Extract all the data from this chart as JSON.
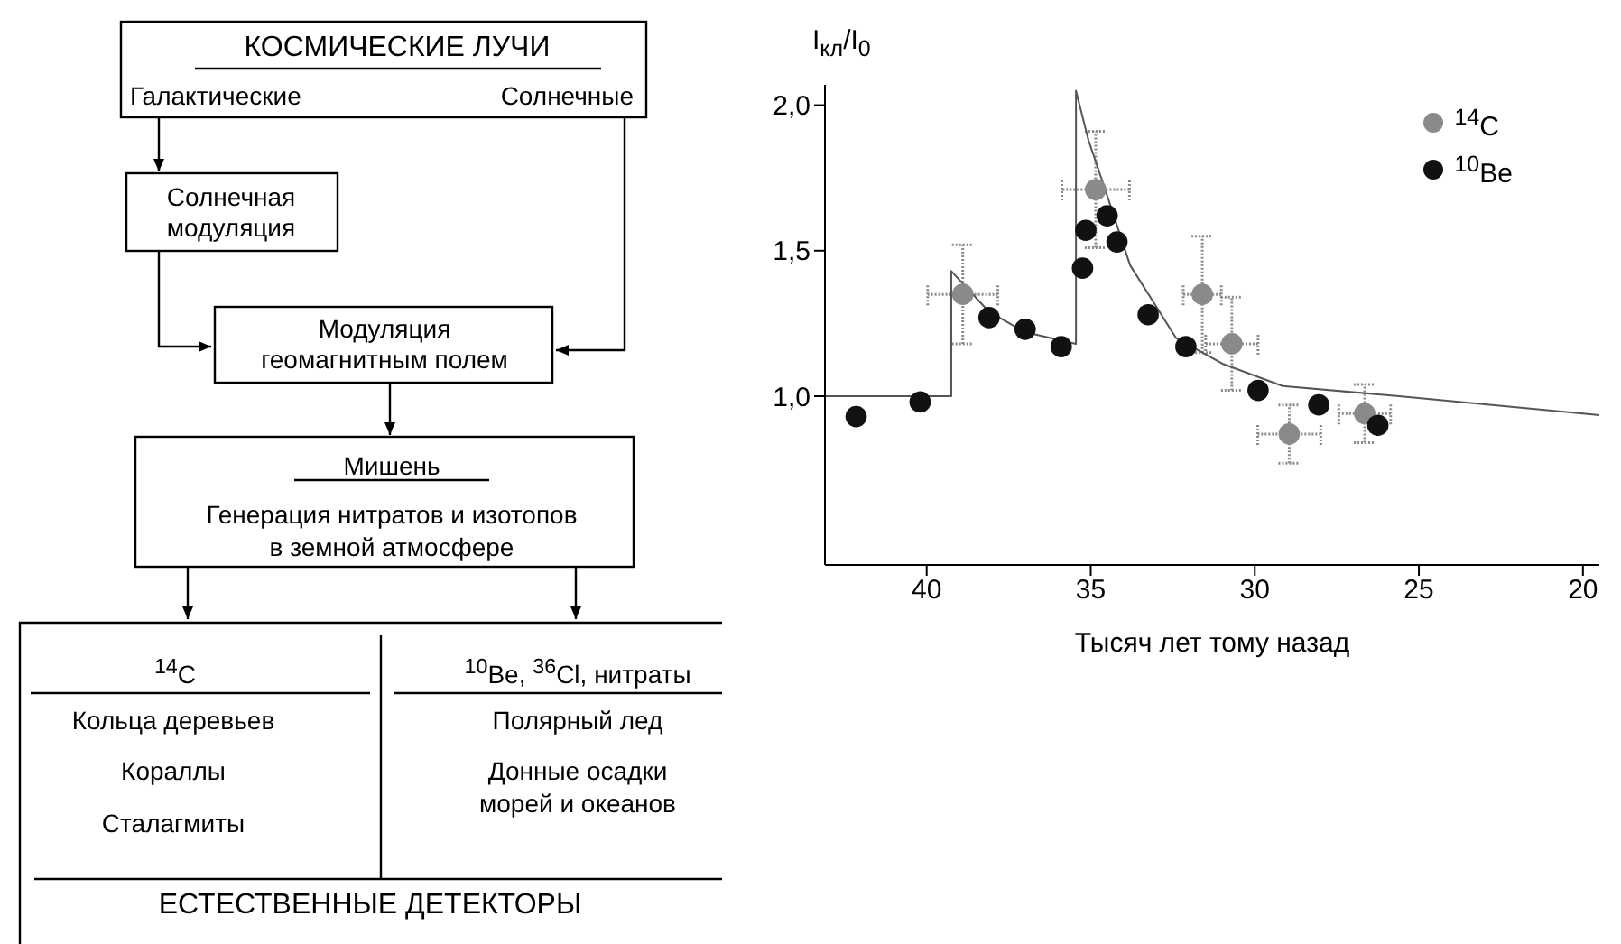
{
  "chart_data": [
    {
      "type": "other",
      "annotations": [
        "КОСМИЧЕСКИЕ ЛУЧИ",
        "Галактические",
        "Солнечные",
        "Солнечная",
        "модуляция",
        "Модуляция",
        "геомагнитным полем",
        "Мишень",
        "Генерация нитратов и изотопов",
        "в земной атмосфере",
        "$^{14}$C",
        "$^{10}$Be, $^{36}$Cl, нитраты",
        "Кольца деревьев",
        "Кораллы",
        "Сталагмиты",
        "Полярный лед",
        "Донные осадки",
        "морей и океанов",
        "ЕСТЕСТВЕННЫЕ ДЕТЕКТОРЫ"
      ]
    },
    {
      "type": "scatter",
      "xlabel": "Тысяч лет тому назад",
      "ylabel": "I$_{кл}$/I$_{0}$",
      "xlim": [
        43.1,
        19.5
      ],
      "xticks": [
        40,
        35,
        30,
        25,
        20
      ],
      "ylim": [
        0.42,
        2.07
      ],
      "yticks": [
        {
          "value": 1,
          "label": "1,0"
        },
        {
          "value": 1.5,
          "label": "1,5"
        },
        {
          "value": 2,
          "label": "2,0"
        }
      ],
      "legend": "top right",
      "marker": "circle",
      "series": [
        {
          "name": "$^{14}$C",
          "color": "#8a8a8a",
          "x": [
            38.9,
            34.85,
            31.6,
            30.7,
            28.95,
            26.65
          ],
          "values": [
            1.35,
            1.71,
            1.35,
            1.18,
            0.87,
            0.94
          ],
          "errors": [
            0.17,
            0.2,
            0.2,
            0.16,
            0.1,
            0.1
          ],
          "xerrors": [
            1.07,
            1.03,
            0.58,
            0.8,
            0.96,
            0.79
          ]
        },
        {
          "name": "$^{10}$Be",
          "color": "#111111",
          "x": [
            42.15,
            40.2,
            38.1,
            37.0,
            35.9,
            35.25,
            35.15,
            34.5,
            34.2,
            33.25,
            32.1,
            29.9,
            28.05,
            26.25
          ],
          "values": [
            0.93,
            0.98,
            1.27,
            1.23,
            1.17,
            1.44,
            1.57,
            1.62,
            1.53,
            1.28,
            1.17,
            1.02,
            0.97,
            0.9
          ]
        },
        {
          "type": "line",
          "color": "#555555",
          "marker": "none",
          "x": [
            43.1,
            39.25,
            39.25,
            38.1,
            37.0,
            35.45,
            35.45,
            35.07,
            34.53,
            33.8,
            32.4,
            30.95,
            29.15,
            25.6,
            20,
            19.5
          ],
          "values": [
            1.0,
            1.0,
            1.43,
            1.29,
            1.22,
            1.18,
            2.05,
            1.88,
            1.7,
            1.45,
            1.2,
            1.11,
            1.035,
            1.0,
            0.94,
            0.935
          ]
        }
      ]
    }
  ]
}
